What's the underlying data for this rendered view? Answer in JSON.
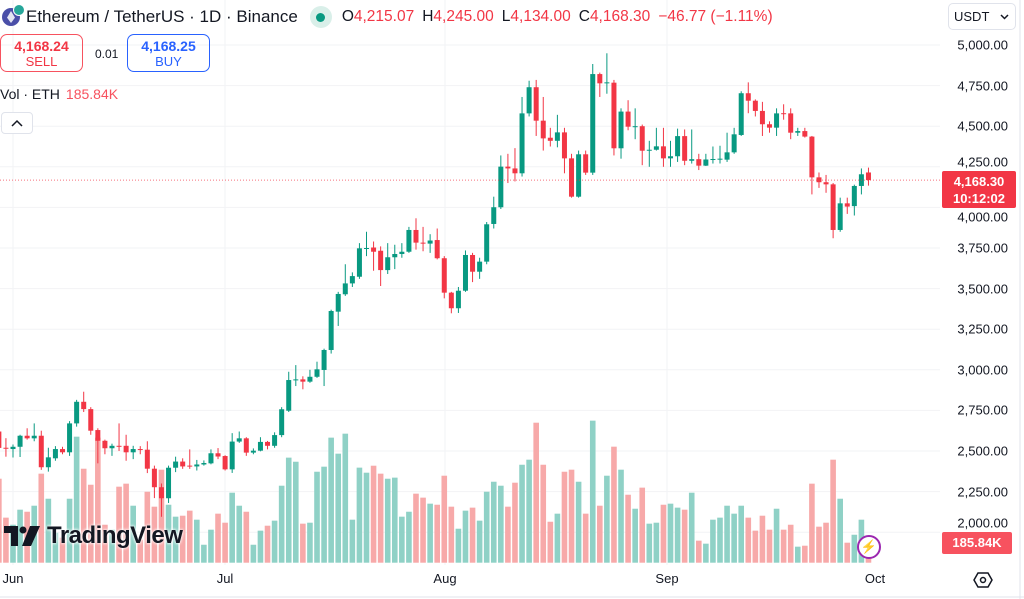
{
  "header": {
    "symbol_title": "Ethereum / TetherUS · 1D · Binance",
    "ohlc": [
      {
        "label": "O",
        "value": "4,215.07"
      },
      {
        "label": "H",
        "value": "4,245.00"
      },
      {
        "label": "L",
        "value": "4,134.00"
      },
      {
        "label": "C",
        "value": "4,168.30"
      }
    ],
    "change": "−46.77 (−1.11%)",
    "market_status": "open"
  },
  "trade": {
    "sell_price": "4,168.24",
    "sell_label": "SELL",
    "spread": "0.01",
    "buy_price": "4,168.25",
    "buy_label": "BUY"
  },
  "volume_legend": {
    "label": "Vol · ETH",
    "value": "185.84K"
  },
  "currency": "USDT",
  "price_axis": [
    "5,000.00",
    "4,750.00",
    "4,500.00",
    "4,250.00",
    "4,000.00",
    "3,750.00",
    "3,500.00",
    "3,250.00",
    "3,000.00",
    "2,750.00",
    "2,500.00",
    "2,250.00",
    "2,000.00"
  ],
  "current_price": {
    "price": "4,168.30",
    "countdown": "10:12:02"
  },
  "current_volume": "185.84K",
  "time_axis": [
    "Jun",
    "Jul",
    "Aug",
    "Sep",
    "Oct"
  ],
  "watermark": "TradingView",
  "colors": {
    "up": "#089981",
    "down": "#f23645",
    "up_volume": "#8fd1c6",
    "down_volume": "#f7a9a9",
    "buy": "#2962ff"
  },
  "chart_data": {
    "type": "candlestick",
    "ylim": [
      2000,
      5000
    ],
    "y_scale": "linear",
    "grid": true,
    "columns": [
      "date",
      "open",
      "high",
      "low",
      "close",
      "volume_k"
    ],
    "candles": [
      [
        "May 30",
        2620,
        2630,
        2505,
        2519,
        781
      ],
      [
        "May 31",
        2520,
        2579,
        2465,
        2517,
        419
      ],
      [
        "Jun 1",
        2512,
        2540,
        2460,
        2526,
        353
      ],
      [
        "Jun 2",
        2526,
        2600,
        2463,
        2594,
        493
      ],
      [
        "Jun 3",
        2594,
        2640,
        2570,
        2578,
        474
      ],
      [
        "Jun 4",
        2578,
        2670,
        2560,
        2594,
        530
      ],
      [
        "Jun 5",
        2594,
        2625,
        2384,
        2400,
        828
      ],
      [
        "Jun 6",
        2400,
        2520,
        2373,
        2461,
        595
      ],
      [
        "Jun 7",
        2455,
        2530,
        2440,
        2512,
        279
      ],
      [
        "Jun 8",
        2512,
        2526,
        2480,
        2492,
        233
      ],
      [
        "Jun 9",
        2492,
        2684,
        2470,
        2670,
        595
      ],
      [
        "Jun 10",
        2670,
        2815,
        2650,
        2803,
        1172
      ],
      [
        "Jun 11",
        2803,
        2865,
        2740,
        2758,
        874
      ],
      [
        "Jun 12",
        2758,
        2770,
        2600,
        2625,
        725
      ],
      [
        "Jun 13",
        2629,
        2640,
        2424,
        2563,
        1163
      ],
      [
        "Jun 14",
        2563,
        2570,
        2480,
        2517,
        353
      ],
      [
        "Jun 15",
        2517,
        2545,
        2470,
        2532,
        307
      ],
      [
        "Jun 16",
        2532,
        2670,
        2500,
        2530,
        707
      ],
      [
        "Jun 17",
        2532,
        2600,
        2440,
        2492,
        735
      ],
      [
        "Jun 18",
        2492,
        2532,
        2450,
        2512,
        530
      ],
      [
        "Jun 19",
        2512,
        2530,
        2480,
        2506,
        214
      ],
      [
        "Jun 20",
        2508,
        2560,
        2364,
        2391,
        660
      ],
      [
        "Jun 21",
        2391,
        2410,
        2210,
        2277,
        521
      ],
      [
        "Jun 22",
        2277,
        2300,
        2095,
        2209,
        865
      ],
      [
        "Jun 23",
        2209,
        2410,
        2180,
        2397,
        539
      ],
      [
        "Jun 24",
        2397,
        2465,
        2370,
        2435,
        428
      ],
      [
        "Jun 25",
        2435,
        2455,
        2390,
        2405,
        437
      ],
      [
        "Jun 26",
        2410,
        2510,
        2390,
        2405,
        484
      ],
      [
        "Jun 27",
        2405,
        2445,
        2380,
        2417,
        400
      ],
      [
        "Jun 28",
        2417,
        2442,
        2410,
        2426,
        167
      ],
      [
        "Jun 29",
        2424,
        2510,
        2418,
        2486,
        307
      ],
      [
        "Jun 30",
        2486,
        2518,
        2450,
        2466,
        456
      ],
      [
        "Jul 1",
        2469,
        2474,
        2380,
        2387,
        372
      ],
      [
        "Jul 2",
        2387,
        2610,
        2365,
        2558,
        651
      ],
      [
        "Jul 3",
        2558,
        2620,
        2550,
        2578,
        530
      ],
      [
        "Jul 4",
        2578,
        2585,
        2470,
        2490,
        474
      ],
      [
        "Jul 5",
        2490,
        2516,
        2480,
        2502,
        167
      ],
      [
        "Jul 6",
        2502,
        2585,
        2498,
        2556,
        298
      ],
      [
        "Jul 7",
        2556,
        2562,
        2510,
        2532,
        344
      ],
      [
        "Jul 8",
        2532,
        2615,
        2520,
        2598,
        391
      ],
      [
        "Jul 9",
        2598,
        2770,
        2585,
        2757,
        716
      ],
      [
        "Jul 10",
        2748,
        2988,
        2740,
        2937,
        977
      ],
      [
        "Jul 11",
        2937,
        3029,
        2900,
        2941,
        939
      ],
      [
        "Jul 12",
        2941,
        2960,
        2880,
        2927,
        363
      ],
      [
        "Jul 13",
        2927,
        3000,
        2920,
        2957,
        372
      ],
      [
        "Jul 14",
        2957,
        3050,
        2950,
        3003,
        846
      ],
      [
        "Jul 15",
        2999,
        3130,
        2900,
        3122,
        893
      ],
      [
        "Jul 16",
        3122,
        3370,
        3100,
        3362,
        1163
      ],
      [
        "Jul 17",
        3358,
        3480,
        3270,
        3467,
        1014
      ],
      [
        "Jul 18",
        3465,
        3650,
        3455,
        3532,
        1200
      ],
      [
        "Jul 19",
        3532,
        3600,
        3510,
        3577,
        400
      ],
      [
        "Jul 20",
        3573,
        3780,
        3560,
        3748,
        884
      ],
      [
        "Jul 21",
        3745,
        3850,
        3700,
        3750,
        837
      ],
      [
        "Jul 22",
        3753,
        3790,
        3610,
        3727,
        902
      ],
      [
        "Jul 23",
        3733,
        3760,
        3516,
        3614,
        828
      ],
      [
        "Jul 24",
        3614,
        3780,
        3590,
        3693,
        781
      ],
      [
        "Jul 25",
        3693,
        3770,
        3620,
        3713,
        791
      ],
      [
        "Jul 26",
        3713,
        3780,
        3690,
        3727,
        428
      ],
      [
        "Jul 27",
        3727,
        3880,
        3720,
        3861,
        474
      ],
      [
        "Jul 28",
        3861,
        3933,
        3740,
        3783,
        642
      ],
      [
        "Jul 29",
        3783,
        3880,
        3730,
        3777,
        605
      ],
      [
        "Jul 30",
        3777,
        3835,
        3720,
        3796,
        549
      ],
      [
        "Jul 31",
        3799,
        3870,
        3680,
        3687,
        539
      ],
      [
        "Aug 1",
        3687,
        3700,
        3440,
        3475,
        809
      ],
      [
        "Aug 2",
        3475,
        3480,
        3348,
        3379,
        521
      ],
      [
        "Aug 3",
        3379,
        3510,
        3350,
        3487,
        316
      ],
      [
        "Aug 4",
        3487,
        3735,
        3480,
        3707,
        484
      ],
      [
        "Aug 5",
        3707,
        3720,
        3540,
        3604,
        512
      ],
      [
        "Aug 6",
        3604,
        3690,
        3560,
        3666,
        391
      ],
      [
        "Aug 7",
        3666,
        3910,
        3650,
        3896,
        660
      ],
      [
        "Aug 8",
        3898,
        4066,
        3870,
        4001,
        753
      ],
      [
        "Aug 9",
        4001,
        4320,
        3990,
        4251,
        716
      ],
      [
        "Aug 10",
        4251,
        4330,
        4150,
        4240,
        521
      ],
      [
        "Aug 11",
        4240,
        4365,
        4160,
        4210,
        744
      ],
      [
        "Aug 12",
        4210,
        4680,
        4190,
        4579,
        911
      ],
      [
        "Aug 13",
        4579,
        4780,
        4560,
        4740,
        958
      ],
      [
        "Aug 14",
        4740,
        4785,
        4440,
        4534,
        1302
      ],
      [
        "Aug 15",
        4534,
        4680,
        4350,
        4425,
        911
      ],
      [
        "Aug 16",
        4429,
        4490,
        4375,
        4410,
        381
      ],
      [
        "Aug 17",
        4410,
        4570,
        4370,
        4462,
        456
      ],
      [
        "Aug 18",
        4462,
        4490,
        4210,
        4302,
        846
      ],
      [
        "Aug 19",
        4302,
        4330,
        4060,
        4066,
        865
      ],
      [
        "Aug 20",
        4066,
        4350,
        4060,
        4327,
        753
      ],
      [
        "Aug 21",
        4327,
        4350,
        4200,
        4214,
        456
      ],
      [
        "Aug 22",
        4214,
        4883,
        4200,
        4821,
        1321
      ],
      [
        "Aug 23",
        4821,
        4830,
        4680,
        4764,
        530
      ],
      [
        "Aug 24",
        4764,
        4949,
        4700,
        4770,
        809
      ],
      [
        "Aug 25",
        4768,
        4785,
        4320,
        4364,
        1079
      ],
      [
        "Aug 26",
        4364,
        4610,
        4300,
        4590,
        865
      ],
      [
        "Aug 27",
        4590,
        4660,
        4475,
        4497,
        632
      ],
      [
        "Aug 28",
        4497,
        4610,
        4420,
        4500,
        502
      ],
      [
        "Aug 29",
        4500,
        4510,
        4260,
        4349,
        698
      ],
      [
        "Aug 30",
        4349,
        4410,
        4250,
        4355,
        363
      ],
      [
        "Aug 31",
        4355,
        4490,
        4350,
        4376,
        372
      ],
      [
        "Sep 1",
        4376,
        4490,
        4250,
        4302,
        539
      ],
      [
        "Sep 2",
        4302,
        4410,
        4250,
        4315,
        549
      ],
      [
        "Sep 3",
        4315,
        4485,
        4280,
        4439,
        512
      ],
      [
        "Sep 4",
        4439,
        4480,
        4260,
        4287,
        493
      ],
      [
        "Sep 5",
        4287,
        4480,
        4270,
        4297,
        651
      ],
      [
        "Sep 6",
        4297,
        4330,
        4230,
        4257,
        205
      ],
      [
        "Sep 7",
        4257,
        4330,
        4255,
        4295,
        177
      ],
      [
        "Sep 8",
        4294,
        4375,
        4270,
        4298,
        400
      ],
      [
        "Sep 9",
        4296,
        4380,
        4270,
        4300,
        419
      ],
      [
        "Sep 10",
        4294,
        4460,
        4280,
        4339,
        530
      ],
      [
        "Sep 11",
        4339,
        4490,
        4330,
        4450,
        456
      ],
      [
        "Sep 12",
        4446,
        4715,
        4440,
        4703,
        530
      ],
      [
        "Sep 13",
        4703,
        4770,
        4580,
        4657,
        419
      ],
      [
        "Sep 14",
        4657,
        4665,
        4560,
        4594,
        298
      ],
      [
        "Sep 15",
        4594,
        4650,
        4440,
        4512,
        437
      ],
      [
        "Sep 16",
        4512,
        4530,
        4460,
        4491,
        307
      ],
      [
        "Sep 17",
        4491,
        4610,
        4440,
        4579,
        502
      ],
      [
        "Sep 18",
        4580,
        4635,
        4540,
        4579,
        307
      ],
      [
        "Sep 19",
        4579,
        4610,
        4420,
        4460,
        353
      ],
      [
        "Sep 20",
        4460,
        4490,
        4440,
        4470,
        149
      ],
      [
        "Sep 21",
        4470,
        4490,
        4430,
        4436,
        158
      ],
      [
        "Sep 22",
        4436,
        4440,
        4080,
        4185,
        735
      ],
      [
        "Sep 23",
        4185,
        4215,
        4120,
        4155,
        335
      ],
      [
        "Sep 24",
        4155,
        4200,
        4090,
        4142,
        372
      ],
      [
        "Sep 25",
        4142,
        4150,
        3810,
        3861,
        958
      ],
      [
        "Sep 26",
        3861,
        4060,
        3850,
        4025,
        595
      ],
      [
        "Sep 27",
        4025,
        4060,
        3960,
        4005,
        186
      ],
      [
        "Sep 28",
        4008,
        4140,
        3950,
        4132,
        260
      ],
      [
        "Sep 29",
        4132,
        4240,
        4080,
        4204,
        400
      ],
      [
        "Sep 30",
        4215.07,
        4245,
        4134,
        4168.3,
        185.84
      ]
    ]
  }
}
